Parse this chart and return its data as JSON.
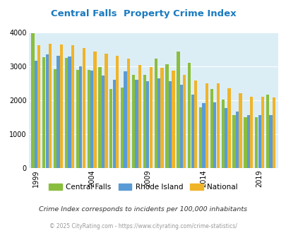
{
  "title": "Central Falls  Property Crime Index",
  "title_color": "#1a7abf",
  "subtitle": "Crime Index corresponds to incidents per 100,000 inhabitants",
  "footer": "© 2025 CityRating.com - https://www.cityrating.com/crime-statistics/",
  "years": [
    1999,
    2000,
    2001,
    2002,
    2003,
    2004,
    2005,
    2006,
    2007,
    2008,
    2009,
    2010,
    2011,
    2012,
    2013,
    2014,
    2015,
    2016,
    2017,
    2018,
    2019,
    2020
  ],
  "central_falls": [
    3980,
    3270,
    2920,
    3260,
    2900,
    2890,
    2990,
    2330,
    2380,
    2760,
    2760,
    3240,
    3060,
    3450,
    3110,
    1780,
    2340,
    2020,
    1550,
    1500,
    1500,
    2170
  ],
  "rhode_island": [
    3170,
    3360,
    3310,
    3300,
    3000,
    2870,
    2720,
    2610,
    2850,
    2610,
    2560,
    2650,
    2560,
    2450,
    2160,
    1920,
    1930,
    1760,
    1665,
    1550,
    1550,
    1550
  ],
  "national": [
    3630,
    3660,
    3640,
    3620,
    3550,
    3430,
    3380,
    3310,
    3230,
    3050,
    2970,
    2950,
    2870,
    2760,
    2590,
    2490,
    2490,
    2360,
    2200,
    2110,
    2110,
    2090
  ],
  "cf_color": "#8abe3f",
  "ri_color": "#5b9bd5",
  "nat_color": "#f0b429",
  "plot_bg": "#dceef5",
  "ylim": [
    0,
    4000
  ],
  "yticks": [
    0,
    1000,
    2000,
    3000,
    4000
  ],
  "xtick_years": [
    1999,
    2004,
    2009,
    2014,
    2019
  ]
}
